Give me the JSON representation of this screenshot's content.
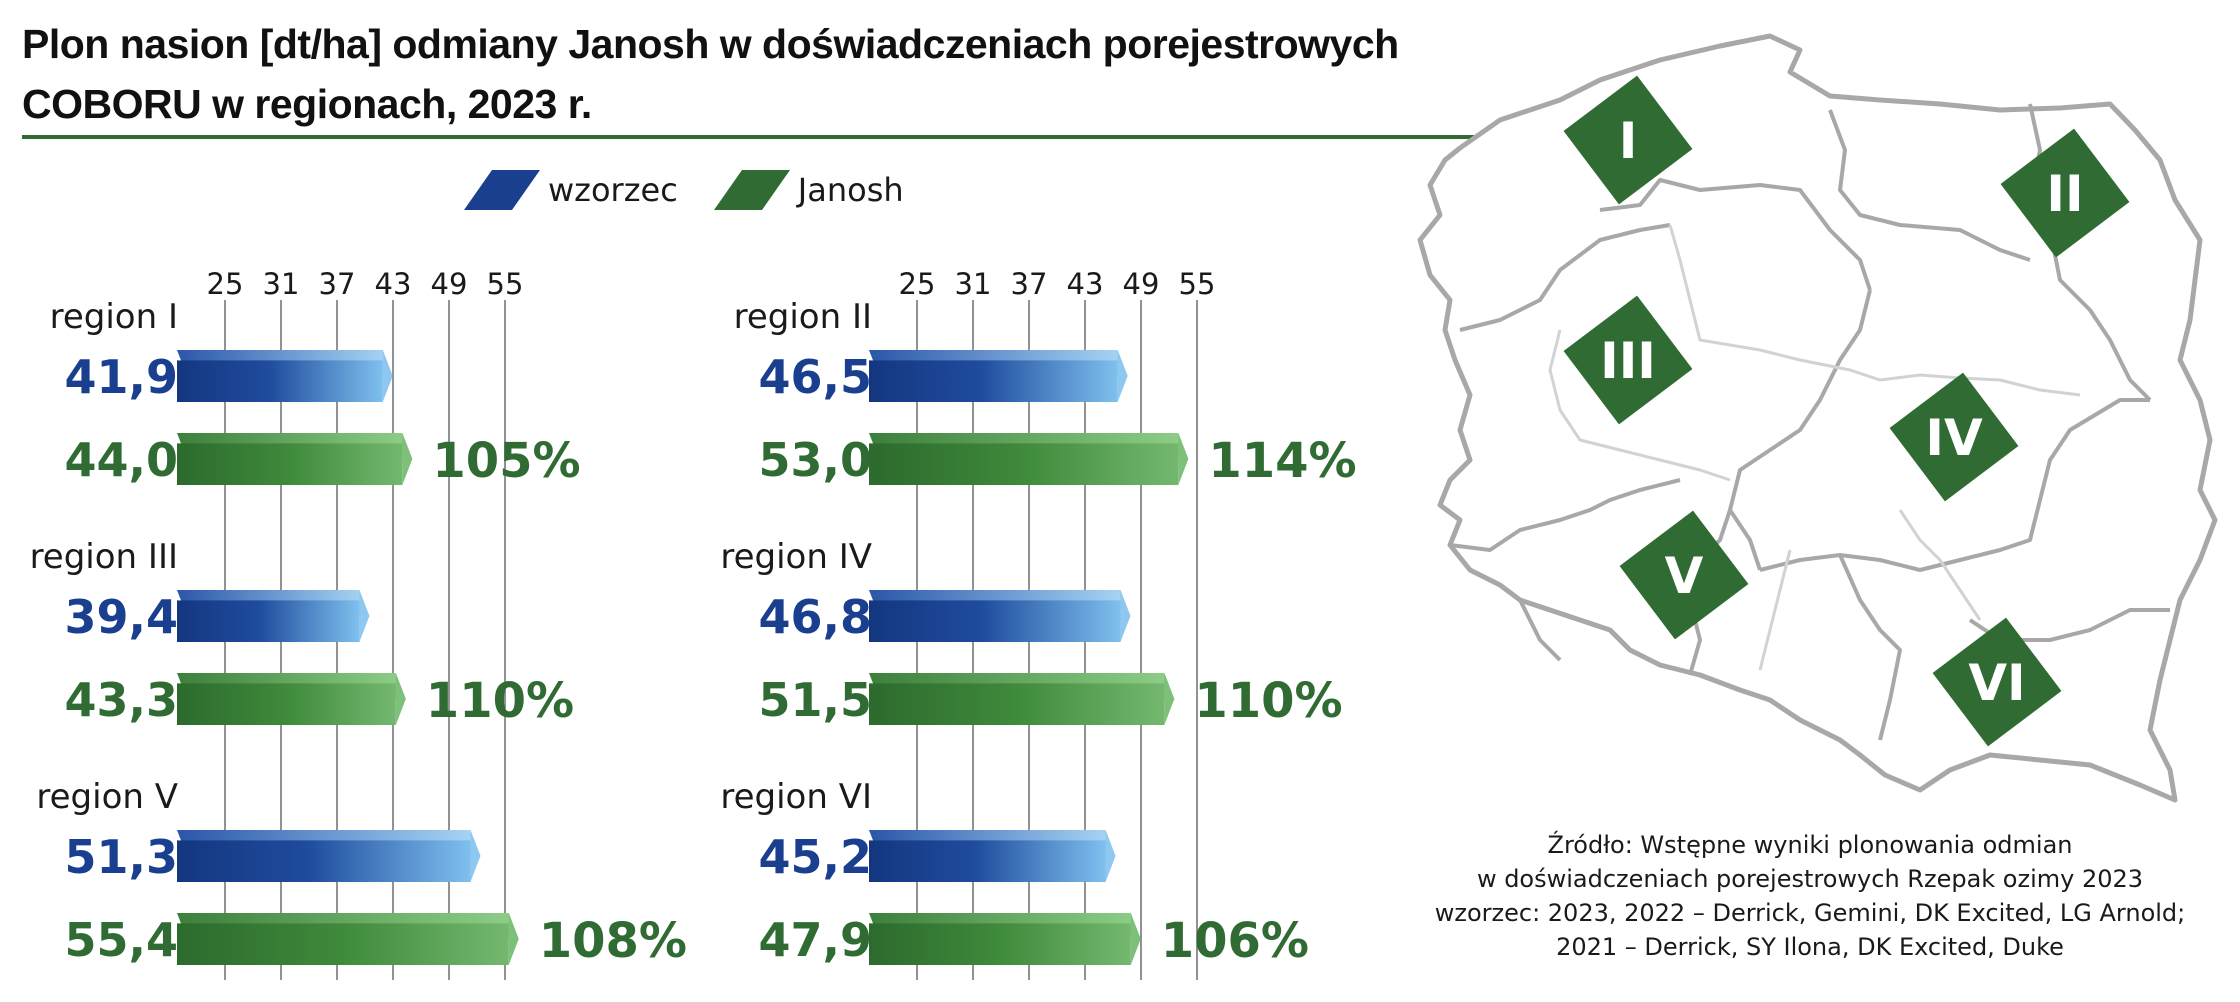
{
  "title": {
    "line1": "Plon nasion [dt/ha] odmiany Janosh w doświadczeniach porejestrowych",
    "line2": "COBORU w regionach, 2023 r."
  },
  "legend": [
    {
      "label": "wzorzec",
      "color": "#1b3f8f"
    },
    {
      "label": "Janosh",
      "color": "#2f6b33"
    }
  ],
  "colors": {
    "wzorzec_dark": "#163a86",
    "wzorzec_light": "#8ec8f0",
    "janosh_dark": "#2d6a2e",
    "janosh_light": "#7cc07a",
    "value_wzorzec_text": "#1b3f8f",
    "value_janosh_text": "#2f6b33",
    "map_tile": "#2f6b33",
    "map_border": "#a8a8a8"
  },
  "chart_data": [
    {
      "type": "bar",
      "orientation": "horizontal",
      "xticks": [
        25,
        31,
        37,
        43,
        49,
        55
      ],
      "xlim": [
        22,
        55
      ],
      "groups": [
        {
          "region": "region I",
          "wzorzec": 41.9,
          "wzorzec_label": "41,9",
          "janosh": 44.0,
          "janosh_label": "44,0",
          "percent": "105%"
        },
        {
          "region": "region III",
          "wzorzec": 39.4,
          "wzorzec_label": "39,4",
          "janosh": 43.3,
          "janosh_label": "43,3",
          "percent": "110%"
        },
        {
          "region": "region V",
          "wzorzec": 51.3,
          "wzorzec_label": "51,3",
          "janosh": 55.4,
          "janosh_label": "55,4",
          "percent": "108%"
        }
      ]
    },
    {
      "type": "bar",
      "orientation": "horizontal",
      "xticks": [
        25,
        31,
        37,
        43,
        49,
        55
      ],
      "xlim": [
        22,
        55
      ],
      "groups": [
        {
          "region": "region II",
          "wzorzec": 46.5,
          "wzorzec_label": "46,5",
          "janosh": 53.0,
          "janosh_label": "53,0",
          "percent": "114%"
        },
        {
          "region": "region IV",
          "wzorzec": 46.8,
          "wzorzec_label": "46,8",
          "janosh": 51.5,
          "janosh_label": "51,5",
          "percent": "110%"
        },
        {
          "region": "region VI",
          "wzorzec": 45.2,
          "wzorzec_label": "45,2",
          "janosh": 47.9,
          "janosh_label": "47,9",
          "percent": "106%"
        }
      ]
    }
  ],
  "map": {
    "regions": [
      "I",
      "II",
      "III",
      "IV",
      "V",
      "VI"
    ]
  },
  "source": [
    "Źródło: Wstępne wyniki plonowania odmian",
    "w doświadczeniach porejestrowych Rzepak ozimy 2023",
    "wzorzec: 2023, 2022 – Derrick, Gemini, DK Excited, LG Arnold;",
    "2021 – Derrick, SY Ilona, DK Excited, Duke"
  ]
}
